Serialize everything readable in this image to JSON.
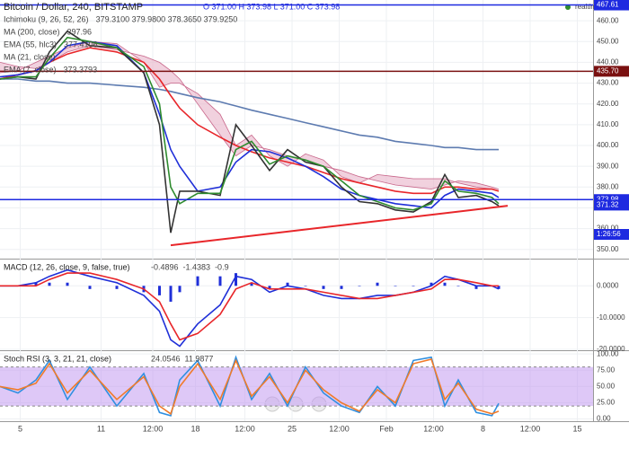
{
  "chart_data": [
    {
      "type": "line",
      "title": "Bitcoin / Dollar, 240, BITSTAMP",
      "ohlc": "O 371.00 H 373.98 L 371.00 C 373.98",
      "status": "realtime",
      "x": [
        -9,
        -1,
        7,
        13,
        21,
        31,
        43,
        55,
        62,
        67,
        71,
        79,
        89,
        96,
        103,
        111,
        119,
        127,
        135,
        143,
        151,
        159,
        167,
        175,
        183,
        189,
        195,
        203,
        210,
        213
      ],
      "xlim": [
        -9,
        255
      ],
      "xticks": [
        {
          "value": 0,
          "label": "5"
        },
        {
          "value": 36,
          "label": "11"
        },
        {
          "value": 59,
          "label": "12:00"
        },
        {
          "value": 78,
          "label": "18"
        },
        {
          "value": 100,
          "label": "12:00"
        },
        {
          "value": 121,
          "label": "25"
        },
        {
          "value": 142,
          "label": "12:00"
        },
        {
          "value": 163,
          "label": "Feb"
        },
        {
          "value": 184,
          "label": "12:00"
        },
        {
          "value": 206,
          "label": "8"
        },
        {
          "value": 227,
          "label": "12:00"
        },
        {
          "value": 248,
          "label": "15"
        }
      ],
      "ylim": [
        346,
        470
      ],
      "yticks": [
        {
          "value": 350,
          "label": "350.00"
        },
        {
          "value": 360,
          "label": "360.00"
        },
        {
          "value": 370,
          "label": "370.00"
        },
        {
          "value": 380,
          "label": "380.00"
        },
        {
          "value": 390,
          "label": "390.00"
        },
        {
          "value": 400,
          "label": "400.00"
        },
        {
          "value": 410,
          "label": "410.00"
        },
        {
          "value": 420,
          "label": "420.00"
        },
        {
          "value": 430,
          "label": "430.00"
        },
        {
          "value": 440,
          "label": "440.00"
        },
        {
          "value": 450,
          "label": "450.00"
        },
        {
          "value": 460,
          "label": "460.00"
        }
      ],
      "series": [
        {
          "name": "Ichimoku (9, 26, 52, 26)",
          "legend_value": "379.3100 379.9800 378.3650 379.9250",
          "color": "#c8668a",
          "style": "cloud",
          "values": [
            440,
            438,
            437,
            440,
            445,
            448,
            446,
            443,
            440,
            436,
            432,
            420,
            405,
            395,
            400,
            398,
            395,
            393,
            390,
            388,
            385,
            383,
            381,
            380,
            379,
            381,
            383,
            382,
            380,
            379
          ],
          "values_b": [
            435,
            436,
            440,
            443,
            447,
            450,
            449,
            440,
            428,
            430,
            430,
            425,
            415,
            400,
            405,
            395,
            390,
            396,
            393,
            385,
            382,
            386,
            385,
            384,
            384,
            384,
            382,
            380,
            379,
            378
          ]
        },
        {
          "name": "MA (200, close)",
          "legend_value": "397.96",
          "color": "#5d7bb0",
          "values": [
            432,
            432,
            431,
            431,
            430,
            430,
            429,
            428,
            427,
            426,
            425,
            423,
            421,
            419,
            417,
            415,
            413,
            411,
            409,
            407,
            405,
            404,
            402,
            401,
            400,
            399,
            399,
            398,
            398,
            398
          ]
        },
        {
          "name": "EMA (55, hlc3)",
          "legend_value": "377.4106",
          "color": "#e8262a",
          "values": [
            432,
            434,
            436,
            440,
            444,
            447,
            445,
            440,
            432,
            424,
            418,
            410,
            404,
            400,
            397,
            394,
            392,
            390,
            387,
            384,
            382,
            380,
            378,
            377,
            377,
            380,
            380,
            379,
            379,
            378
          ]
        },
        {
          "name": "MA (21, close)",
          "color": "#1f2fd8",
          "values": [
            433,
            434,
            436,
            440,
            448,
            450,
            448,
            435,
            415,
            398,
            390,
            378,
            380,
            392,
            398,
            397,
            394,
            390,
            385,
            379,
            376,
            374,
            372,
            371,
            370,
            376,
            379,
            378,
            377,
            375
          ]
        },
        {
          "color": "#333333",
          "values": [
            432,
            433,
            432,
            445,
            455,
            448,
            447,
            435,
            410,
            358,
            378,
            378,
            376,
            410,
            400,
            388,
            398,
            392,
            390,
            380,
            373,
            372,
            369,
            368,
            373,
            386,
            375,
            376,
            373,
            371
          ]
        },
        {
          "name": "EMA (7, close)",
          "legend_value": "373.3793",
          "color": "#2e8b2e",
          "values": [
            432,
            433,
            433,
            442,
            452,
            450,
            447,
            438,
            420,
            380,
            372,
            377,
            377,
            398,
            402,
            391,
            395,
            393,
            390,
            383,
            376,
            373,
            370,
            369,
            372,
            383,
            378,
            377,
            375,
            372
          ]
        }
      ],
      "hlines": [
        {
          "value": 467.61,
          "label": "467.61",
          "color": "#1e2ae0"
        },
        {
          "value": 435.7,
          "label": "435.70",
          "color": "#7a1010"
        },
        {
          "value": 373.98,
          "label": "373.98",
          "color": "#1e2ae0"
        }
      ],
      "price_labels": [
        {
          "value": 371.32,
          "label": "371.32",
          "color": "#1e2ae0"
        }
      ],
      "countdown": "1:26:56",
      "trendline": {
        "x": [
          67,
          217
        ],
        "y": [
          352,
          371
        ],
        "color": "#e8262a"
      }
    },
    {
      "type": "line",
      "title": "MACD (12, 26, close, 9, false, true)",
      "ylim": [
        -20,
        8
      ],
      "yticks": [
        {
          "value": 0,
          "label": "0.0000"
        },
        {
          "value": -10,
          "label": "-10.0000"
        },
        {
          "value": -20,
          "label": "-20.0000"
        }
      ],
      "series": [
        {
          "legend_value": "-0.4896",
          "color": "#1f2fd8",
          "style": "bar",
          "values": [
            0,
            0,
            1,
            1,
            1,
            -1,
            -1,
            -2,
            -3,
            -5,
            -2,
            3,
            3,
            4,
            1,
            -1,
            1,
            0,
            -1,
            -1,
            0,
            1,
            0,
            0,
            1,
            1,
            0,
            -1,
            0,
            -1
          ]
        },
        {
          "legend_value": "-1.4383",
          "color": "#1f2fd8",
          "values": [
            0,
            0,
            1,
            3,
            5,
            3,
            1,
            -3,
            -8,
            -17,
            -19,
            -12,
            -6,
            3,
            2,
            -2,
            0,
            -1,
            -3,
            -4,
            -4,
            -3,
            -3,
            -2,
            0,
            3,
            2,
            0,
            0,
            -1
          ]
        },
        {
          "legend_value": "-0.9",
          "color": "#e8262a",
          "values": [
            0,
            0,
            0,
            2,
            4,
            4,
            2,
            -1,
            -5,
            -12,
            -17,
            -15,
            -9,
            -1,
            1,
            -1,
            -1,
            -1,
            -2,
            -3,
            -4,
            -4,
            -3,
            -2,
            -1,
            2,
            2,
            1,
            0,
            0
          ]
        }
      ]
    },
    {
      "type": "line",
      "title": "Stoch RSI (3, 3, 21, 21, close)",
      "ylim": [
        -2,
        103
      ],
      "yticks": [
        {
          "value": 0,
          "label": "0.00"
        },
        {
          "value": 25,
          "label": "25.00"
        },
        {
          "value": 50,
          "label": "50.00"
        },
        {
          "value": 75,
          "label": "75.00"
        },
        {
          "value": 100,
          "label": "100.00"
        }
      ],
      "band": [
        20,
        80
      ],
      "band_color": "#c39bf0",
      "series": [
        {
          "legend_value": "24.0546",
          "color": "#2f8fe0",
          "values": [
            50,
            40,
            60,
            90,
            30,
            80,
            20,
            70,
            10,
            5,
            60,
            90,
            20,
            95,
            30,
            70,
            20,
            80,
            40,
            20,
            10,
            50,
            20,
            90,
            95,
            20,
            60,
            10,
            5,
            24
          ]
        },
        {
          "legend_value": "11.9877",
          "color": "#f07b2a",
          "values": [
            50,
            45,
            55,
            85,
            40,
            75,
            30,
            65,
            20,
            8,
            50,
            85,
            30,
            90,
            35,
            65,
            25,
            75,
            45,
            25,
            12,
            45,
            25,
            85,
            92,
            30,
            55,
            15,
            8,
            12
          ]
        }
      ]
    }
  ]
}
